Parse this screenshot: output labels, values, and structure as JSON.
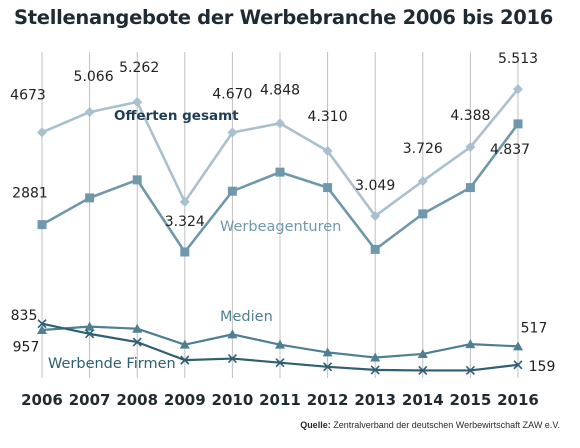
{
  "title": "Stellenangebote der Werbebranche 2006 bis 2016",
  "source": {
    "label": "Quelle:",
    "text": "Zentralverband der deutschen Werbewirtschaft ZAW e.V."
  },
  "colors": {
    "offerten": "#a9c1cf",
    "agenturen": "#6f98ad",
    "medien": "#4f7f93",
    "firmen": "#2e5f72",
    "grid": "#bfbfbf",
    "text": "#1e2b34"
  },
  "chart_data": {
    "type": "line",
    "title": "Stellenangebote der Werbebranche 2006 bis 2016",
    "xlabel": "",
    "ylabel": "",
    "ylim": [
      0,
      6000
    ],
    "grid": true,
    "categories": [
      "2006",
      "2007",
      "2008",
      "2009",
      "2010",
      "2011",
      "2012",
      "2013",
      "2014",
      "2015",
      "2016"
    ],
    "series": [
      {
        "name": "Offerten gesamt",
        "marker": "diamond",
        "values": [
          4673,
          5066,
          5262,
          3324,
          4670,
          4848,
          4310,
          3049,
          3726,
          4388,
          5513
        ],
        "labels": [
          "4673",
          "5.066",
          "5.262",
          "3.324",
          "4.670",
          "4.848",
          "4.310",
          "3.049",
          "3.726",
          "4.388",
          "5.513"
        ]
      },
      {
        "name": "Werbeagenturen",
        "marker": "square",
        "values": [
          2881,
          3400,
          3750,
          2350,
          3530,
          3900,
          3600,
          2400,
          3090,
          3600,
          4837
        ],
        "labels": [
          "2881",
          "",
          "",
          "",
          "",
          "",
          "",
          "",
          "",
          "",
          "4.837"
        ]
      },
      {
        "name": "Medien",
        "marker": "triangle",
        "values": [
          835,
          900,
          860,
          550,
          750,
          550,
          400,
          300,
          370,
          560,
          517
        ],
        "labels": [
          "835",
          "",
          "",
          "",
          "",
          "",
          "",
          "",
          "",
          "",
          "517"
        ]
      },
      {
        "name": "Werbende Firmen",
        "marker": "cross",
        "values": [
          957,
          760,
          600,
          250,
          280,
          200,
          120,
          60,
          50,
          50,
          159
        ],
        "labels": [
          "957",
          "",
          "",
          "",
          "",
          "",
          "",
          "",
          "",
          "",
          "159"
        ]
      }
    ]
  }
}
